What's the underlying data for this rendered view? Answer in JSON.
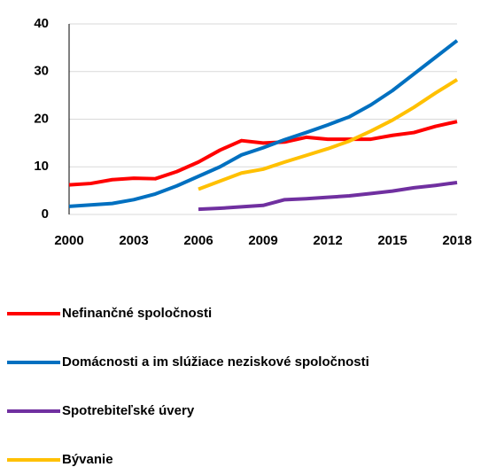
{
  "chart_data": {
    "type": "line",
    "x": [
      2000,
      2001,
      2002,
      2003,
      2004,
      2005,
      2006,
      2007,
      2008,
      2009,
      2010,
      2011,
      2012,
      2013,
      2014,
      2015,
      2016,
      2017,
      2018
    ],
    "series": [
      {
        "name": "Nefinančné spoločnosti",
        "color": "#ff0000",
        "values": [
          6.2,
          6.5,
          7.3,
          7.6,
          7.5,
          9,
          11,
          13.5,
          15.5,
          15,
          15.2,
          16.2,
          15.8,
          15.8,
          15.8,
          16.6,
          17.2,
          18.5,
          19.5
        ]
      },
      {
        "name": "Domácnosti a im slúžiace neziskové spoločnosti",
        "color": "#0070c0",
        "values": [
          1.7,
          2,
          2.3,
          3.1,
          4.3,
          6,
          8,
          10,
          12.5,
          14,
          15.7,
          17.2,
          18.8,
          20.5,
          23,
          26,
          29.5,
          33,
          36.5
        ]
      },
      {
        "name": "Spotrebiteľské úvery",
        "color": "#7030a0",
        "values": [
          null,
          null,
          null,
          null,
          null,
          null,
          1.1,
          1.3,
          1.6,
          1.9,
          3.1,
          3.3,
          3.6,
          3.9,
          4.4,
          4.9,
          5.6,
          6.1,
          6.7
        ]
      },
      {
        "name": "Bývanie",
        "color": "#ffc000",
        "values": [
          null,
          null,
          null,
          null,
          null,
          null,
          5.3,
          7,
          8.7,
          9.5,
          11,
          12.4,
          13.8,
          15.4,
          17.5,
          19.8,
          22.5,
          25.5,
          28.3
        ]
      }
    ],
    "xlim": [
      2000,
      2018
    ],
    "xticks": [
      2000,
      2003,
      2006,
      2009,
      2012,
      2015,
      2018
    ],
    "ylim": [
      0,
      40
    ],
    "yticks": [
      0,
      10,
      20,
      30,
      40
    ],
    "grid": true
  }
}
